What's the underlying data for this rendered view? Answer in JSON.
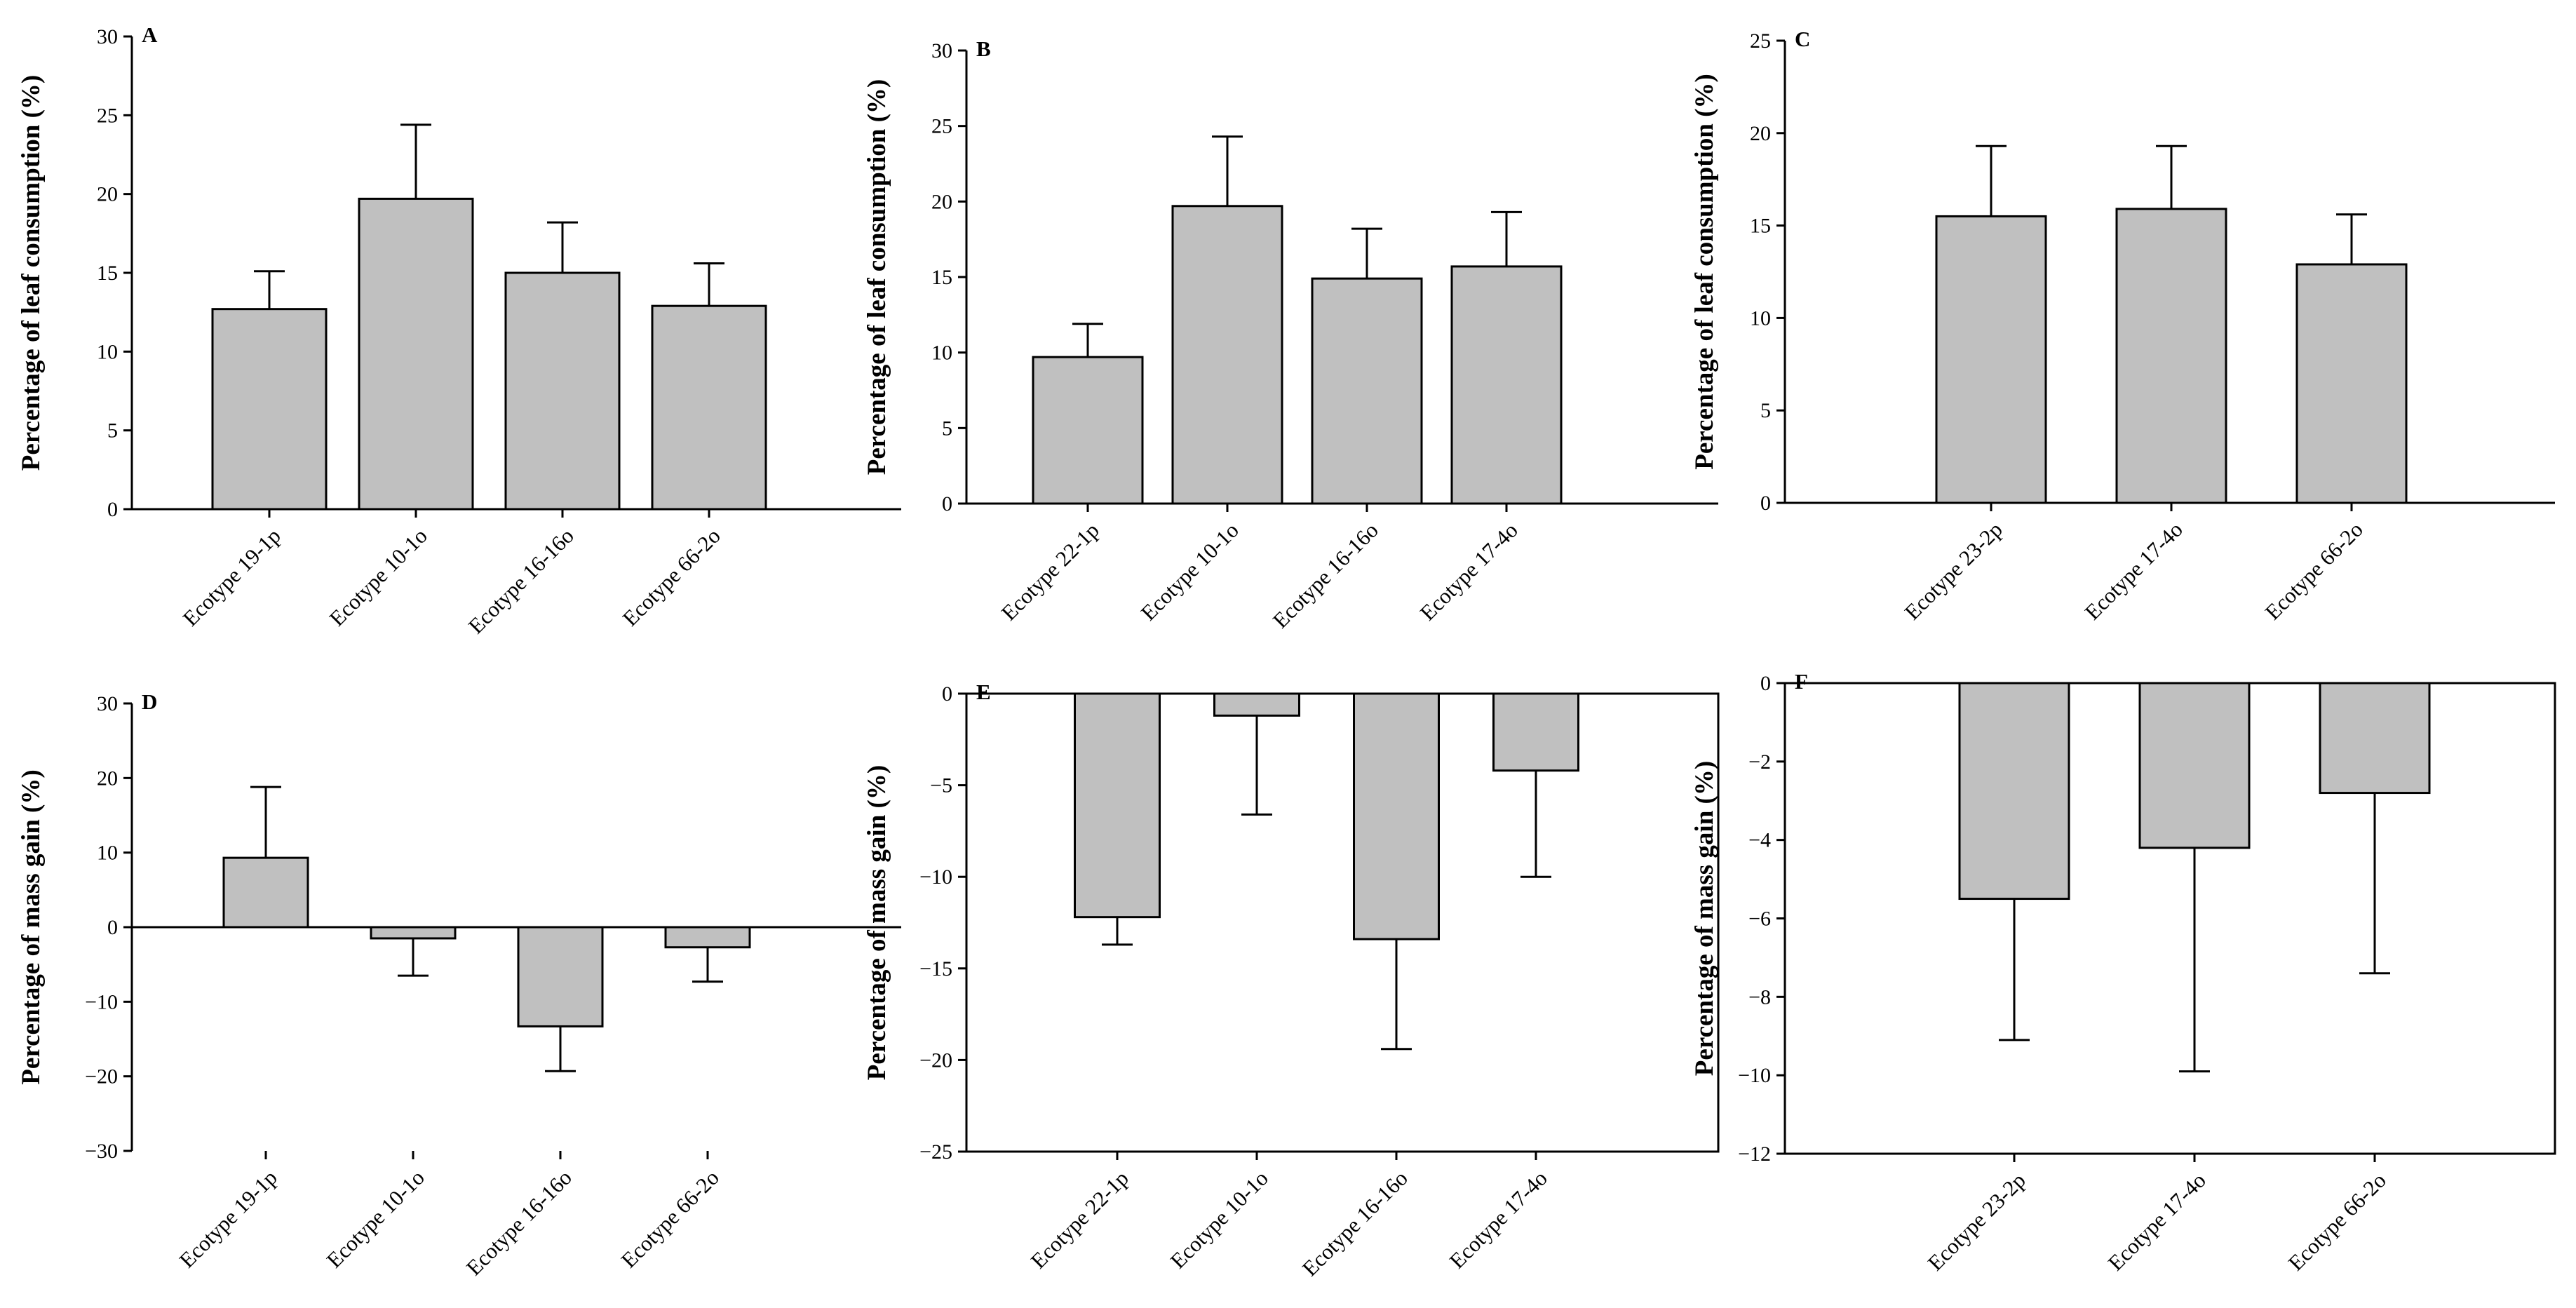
{
  "chart_data": [
    {
      "panel": "A",
      "type": "bar",
      "ylabel": "Percentage of leaf consumption (%)",
      "ylim": [
        0,
        30
      ],
      "ticks": [
        0,
        5,
        10,
        15,
        20,
        25,
        30
      ],
      "categories": [
        "Ecotype 19-1p",
        "Ecotype 10-1o",
        "Ecotype 16-16o",
        "Ecotype 66-2o"
      ],
      "values": [
        12.7,
        19.7,
        15.0,
        12.9
      ],
      "errors": [
        2.4,
        4.7,
        3.2,
        2.7
      ],
      "frame": false
    },
    {
      "panel": "B",
      "type": "bar",
      "ylabel": "Percentage of leaf consumption (%)",
      "ylim": [
        0,
        30
      ],
      "ticks": [
        0,
        5,
        10,
        15,
        20,
        25,
        30
      ],
      "categories": [
        "Ecotype 22-1p",
        "Ecotype 10-1o",
        "Ecotype 16-16o",
        "Ecotype 17-4o"
      ],
      "values": [
        9.7,
        19.7,
        14.9,
        15.7
      ],
      "errors": [
        2.2,
        4.6,
        3.3,
        3.6
      ],
      "frame": false
    },
    {
      "panel": "C",
      "type": "bar",
      "ylabel": "Percentage of leaf consumption (%)",
      "ylim": [
        0,
        25
      ],
      "ticks": [
        0,
        5,
        10,
        15,
        20,
        25
      ],
      "categories": [
        "Ecotype 23-2p",
        "Ecotype 17-4o",
        "Ecotype 66-2o"
      ],
      "values": [
        15.5,
        15.9,
        12.9
      ],
      "errors": [
        3.8,
        3.4,
        2.7
      ],
      "frame": false
    },
    {
      "panel": "D",
      "type": "bar",
      "ylabel": "Percentage of mass gain (%)",
      "ylim": [
        -30,
        30
      ],
      "ticks": [
        -30,
        -20,
        -10,
        0,
        10,
        20,
        30
      ],
      "categories": [
        "Ecotype 19-1p",
        "Ecotype 10-1o",
        "Ecotype 16-16o",
        "Ecotype 66-2o"
      ],
      "values": [
        9.3,
        -1.5,
        -13.3,
        -2.7
      ],
      "errors": [
        9.5,
        5.0,
        6.0,
        4.6
      ],
      "frame": false
    },
    {
      "panel": "E",
      "type": "bar",
      "ylabel": "Percentage of mass gain (%)",
      "ylim": [
        -25,
        0
      ],
      "ticks": [
        -25,
        -20,
        -15,
        -10,
        -5,
        0
      ],
      "categories": [
        "Ecotype 22-1p",
        "Ecotype 10-1o",
        "Ecotype 16-16o",
        "Ecotype 17-4o"
      ],
      "values": [
        -12.2,
        -1.2,
        -13.4,
        -4.2
      ],
      "errors": [
        1.5,
        5.4,
        6.0,
        5.8
      ],
      "frame": true
    },
    {
      "panel": "F",
      "type": "bar",
      "ylabel": "Percentage of mass gain (%)",
      "ylim": [
        -12,
        0
      ],
      "ticks": [
        -12,
        -10,
        -8,
        -6,
        -4,
        -2,
        0
      ],
      "categories": [
        "Ecotype 23-2p",
        "Ecotype 17-4o",
        "Ecotype 66-2o"
      ],
      "values": [
        -5.5,
        -4.2,
        -2.8
      ],
      "errors": [
        3.6,
        5.7,
        4.6
      ],
      "frame": true
    }
  ]
}
